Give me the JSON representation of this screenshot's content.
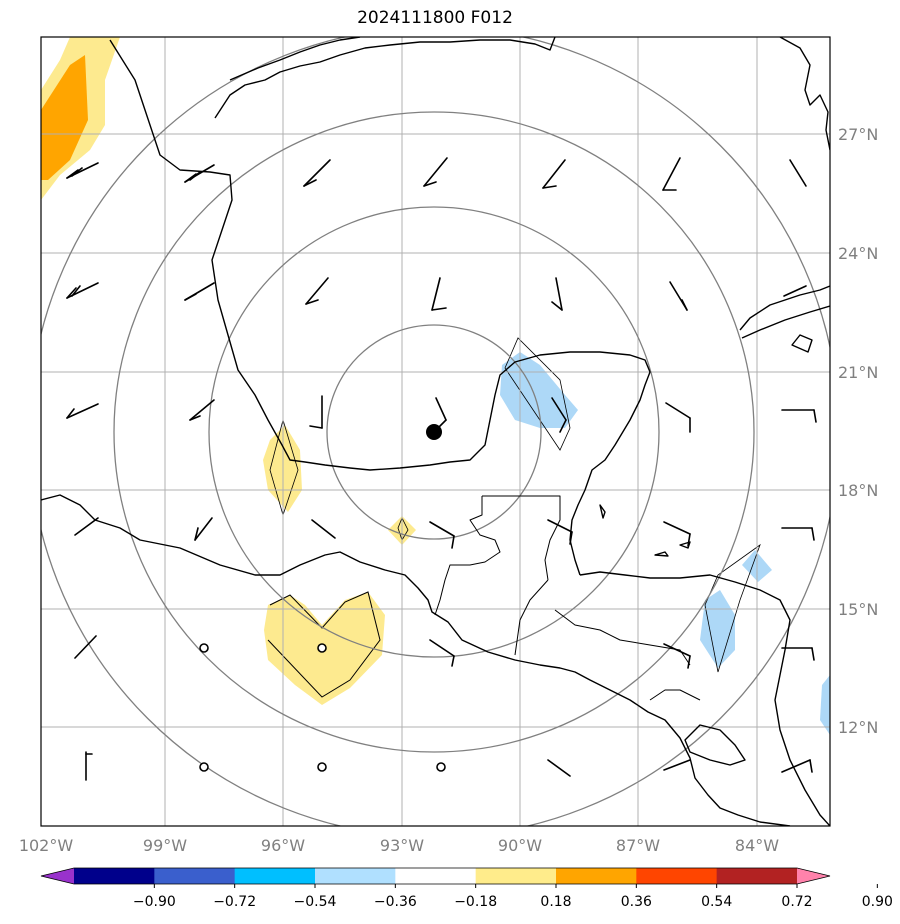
{
  "title": "2024111800 F012",
  "map": {
    "lon_labels": [
      "102°W",
      "99°W",
      "96°W",
      "93°W",
      "90°W",
      "87°W",
      "84°W"
    ],
    "lat_labels": [
      "27°N",
      "24°N",
      "21°N",
      "18°N",
      "15°N",
      "12°N"
    ],
    "center_marker": "storm-center-dot",
    "range_rings": 4
  },
  "colorbar": {
    "labels": [
      "−0.90",
      "−0.72",
      "−0.54",
      "−0.36",
      "−0.18",
      "0.18",
      "0.36",
      "0.54",
      "0.72",
      "0.90"
    ],
    "colors": [
      "#9932cc",
      "#00008b",
      "#3a5fcd",
      "#00bfff",
      "#b0e0ff",
      "#ffffff",
      "#ffec8b",
      "#ffa500",
      "#ff4500",
      "#b22222",
      "#ff82ab"
    ]
  },
  "colors": {
    "positive_light": "#fdea8f",
    "positive_mid": "#ffa500",
    "negative_light": "#add8f7",
    "grid": "#b0b0b0",
    "rings": "#808080"
  }
}
